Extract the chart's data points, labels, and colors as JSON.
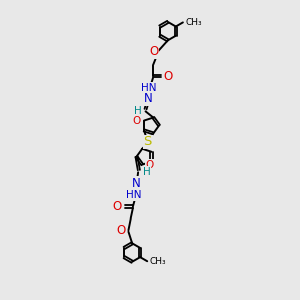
{
  "bg_color": "#e8e8e8",
  "bond_color": "#000000",
  "carbon_color": "#000000",
  "oxygen_color": "#dd0000",
  "nitrogen_color": "#0000cc",
  "sulfur_color": "#bbbb00",
  "hydrogen_color": "#008888",
  "figsize": [
    3.0,
    3.0
  ],
  "dpi": 100,
  "xlim": [
    0,
    10
  ],
  "ylim": [
    0,
    20
  ]
}
